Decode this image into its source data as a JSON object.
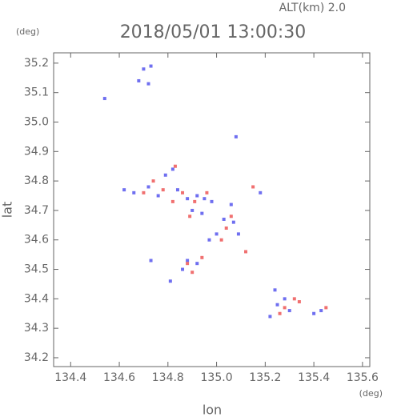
{
  "chart_data": {
    "type": "scatter",
    "title": "2018/05/01 13:00:30",
    "annotation": "ALT(km) 2.0",
    "y_unit": "(deg)",
    "x_unit": "(deg)",
    "x_label": "lon",
    "y_label": "lat",
    "xlim": [
      134.33,
      135.63
    ],
    "ylim": [
      34.17,
      35.235
    ],
    "xticks": [
      {
        "value": 134.4,
        "label": "134.4"
      },
      {
        "value": 134.6,
        "label": "134.6"
      },
      {
        "value": 134.8,
        "label": "134.8"
      },
      {
        "value": 135.0,
        "label": "135.0"
      },
      {
        "value": 135.2,
        "label": "135.2"
      },
      {
        "value": 135.4,
        "label": "135.4"
      },
      {
        "value": 135.6,
        "label": "135.6"
      }
    ],
    "yticks": [
      {
        "value": 34.2,
        "label": "34.2"
      },
      34.3,
      34.4,
      34.5,
      34.6,
      34.7,
      34.8,
      34.9,
      {
        "value": 35.0,
        "label": "35.0"
      },
      35.1,
      35.2
    ],
    "series": [
      {
        "color": "#6f6ff0",
        "x": [
          134.7,
          134.73,
          134.68,
          134.72,
          134.54,
          135.08,
          134.82,
          134.79,
          134.62,
          134.66,
          134.72,
          134.76,
          134.84,
          134.88,
          134.92,
          134.95,
          134.9,
          134.94,
          134.98,
          135.03,
          135.07,
          135.06,
          135.0,
          134.97,
          135.09,
          134.88,
          134.86,
          134.92,
          134.73,
          134.81,
          135.25,
          135.28,
          135.3,
          135.22,
          135.24,
          135.4,
          135.43,
          135.18
        ],
        "values": [
          35.18,
          35.19,
          35.14,
          35.13,
          35.08,
          34.95,
          34.84,
          34.82,
          34.77,
          34.76,
          34.78,
          34.75,
          34.77,
          34.74,
          34.75,
          34.74,
          34.7,
          34.69,
          34.73,
          34.67,
          34.66,
          34.72,
          34.62,
          34.6,
          34.62,
          34.53,
          34.5,
          34.52,
          34.53,
          34.46,
          34.38,
          34.4,
          34.36,
          34.34,
          34.43,
          34.35,
          34.36,
          34.76
        ]
      },
      {
        "color": "#f07070",
        "x": [
          134.74,
          134.78,
          134.82,
          134.86,
          134.91,
          134.96,
          134.89,
          135.04,
          135.06,
          135.02,
          135.12,
          134.9,
          134.94,
          134.88,
          135.15,
          135.28,
          135.32,
          135.26,
          135.34,
          135.45,
          134.83,
          134.7
        ],
        "values": [
          34.8,
          34.77,
          34.73,
          34.76,
          34.73,
          34.76,
          34.68,
          34.64,
          34.68,
          34.6,
          34.56,
          34.49,
          34.54,
          34.52,
          34.78,
          34.37,
          34.4,
          34.35,
          34.39,
          34.37,
          34.85,
          34.76
        ]
      }
    ]
  }
}
